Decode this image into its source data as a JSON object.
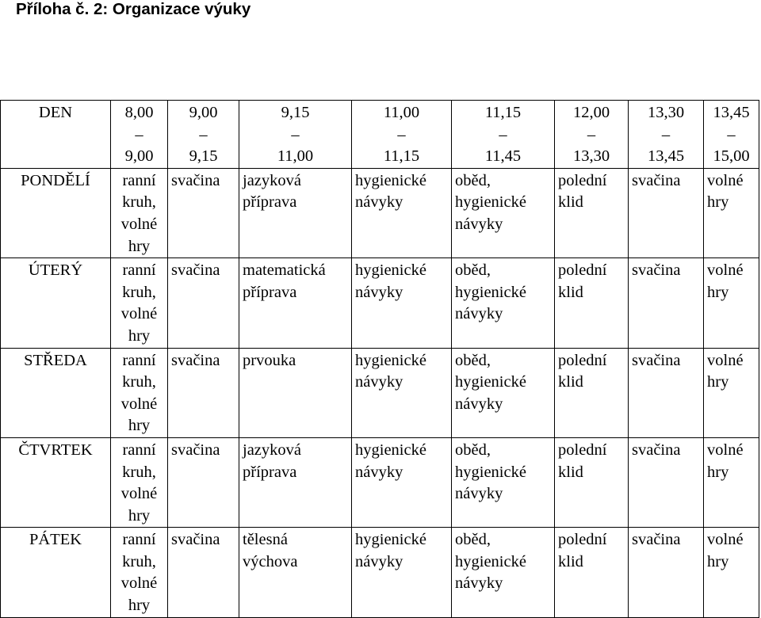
{
  "document": {
    "title": "Příloha č. 2: Organizace výuky"
  },
  "table": {
    "day_header": "DEN",
    "time_headers": [
      [
        "8,00",
        "–",
        "9,00"
      ],
      [
        "9,00",
        "–",
        "9,15"
      ],
      [
        "9,15",
        "–",
        "11,00"
      ],
      [
        "11,00",
        "–",
        "11,15"
      ],
      [
        "11,15",
        "–",
        "11,45"
      ],
      [
        "12,00",
        "–",
        "13,30"
      ],
      [
        "13,30",
        "–",
        "13,45"
      ],
      [
        "13,45",
        "–",
        "15,00"
      ]
    ],
    "rows": [
      {
        "day": "PONDĚLÍ",
        "cells": [
          [
            "ranní",
            "kruh,",
            "volné",
            "hry"
          ],
          [
            "svačina"
          ],
          [
            "jazyková",
            "příprava"
          ],
          [
            "hygienické",
            "návyky"
          ],
          [
            "oběd,",
            "hygienické",
            "návyky"
          ],
          [
            "polední",
            "klid"
          ],
          [
            "svačina"
          ],
          [
            "volné",
            "hry"
          ]
        ]
      },
      {
        "day": "ÚTERÝ",
        "cells": [
          [
            "ranní",
            "kruh,",
            "volné",
            "hry"
          ],
          [
            "svačina"
          ],
          [
            "matematická",
            "příprava"
          ],
          [
            "hygienické",
            "návyky"
          ],
          [
            "oběd,",
            "hygienické",
            "návyky"
          ],
          [
            "polední",
            "klid"
          ],
          [
            "svačina"
          ],
          [
            "volné",
            "hry"
          ]
        ]
      },
      {
        "day": "STŘEDA",
        "cells": [
          [
            "ranní",
            "kruh,",
            "volné",
            "hry"
          ],
          [
            "svačina"
          ],
          [
            "prvouka"
          ],
          [
            "hygienické",
            "návyky"
          ],
          [
            "oběd,",
            "hygienické",
            "návyky"
          ],
          [
            "polední",
            "klid"
          ],
          [
            "svačina"
          ],
          [
            "volné",
            "hry"
          ]
        ]
      },
      {
        "day": "ČTVRTEK",
        "cells": [
          [
            "ranní",
            "kruh,",
            "volné",
            "hry"
          ],
          [
            "svačina"
          ],
          [
            "jazyková",
            "příprava"
          ],
          [
            "hygienické",
            "návyky"
          ],
          [
            "oběd,",
            "hygienické",
            "návyky"
          ],
          [
            "polední",
            "klid"
          ],
          [
            "svačina"
          ],
          [
            "volné",
            "hry"
          ]
        ]
      },
      {
        "day": "PÁTEK",
        "cells": [
          [
            "ranní",
            "kruh,",
            "volné",
            "hry"
          ],
          [
            "svačina"
          ],
          [
            "tělesná",
            "výchova"
          ],
          [
            "hygienické",
            "návyky"
          ],
          [
            "oběd,",
            "hygienické",
            "návyky"
          ],
          [
            "polední",
            "klid"
          ],
          [
            "svačina"
          ],
          [
            "volné",
            "hry"
          ]
        ]
      }
    ]
  }
}
